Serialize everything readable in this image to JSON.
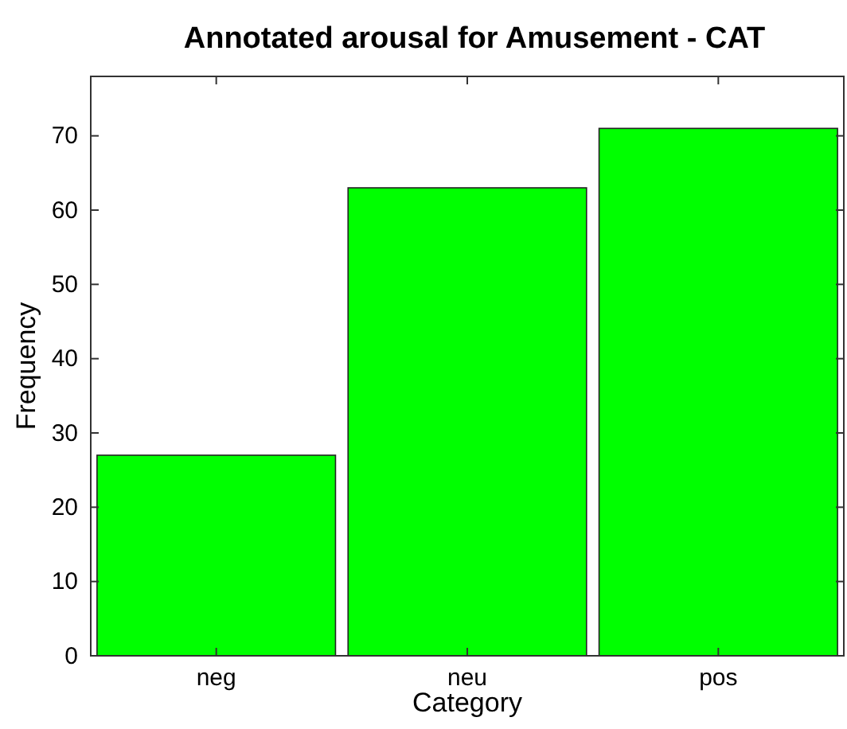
{
  "chart_data": {
    "type": "bar",
    "title": "Annotated arousal for Amusement - CAT",
    "xlabel": "Category",
    "ylabel": "Frequency",
    "categories": [
      "neg",
      "neu",
      "pos"
    ],
    "values": [
      27,
      63,
      71
    ],
    "color": "#00ff00",
    "ylim": [
      0,
      78
    ],
    "yticks": [
      0,
      10,
      20,
      30,
      40,
      50,
      60,
      70
    ],
    "grid": false
  }
}
